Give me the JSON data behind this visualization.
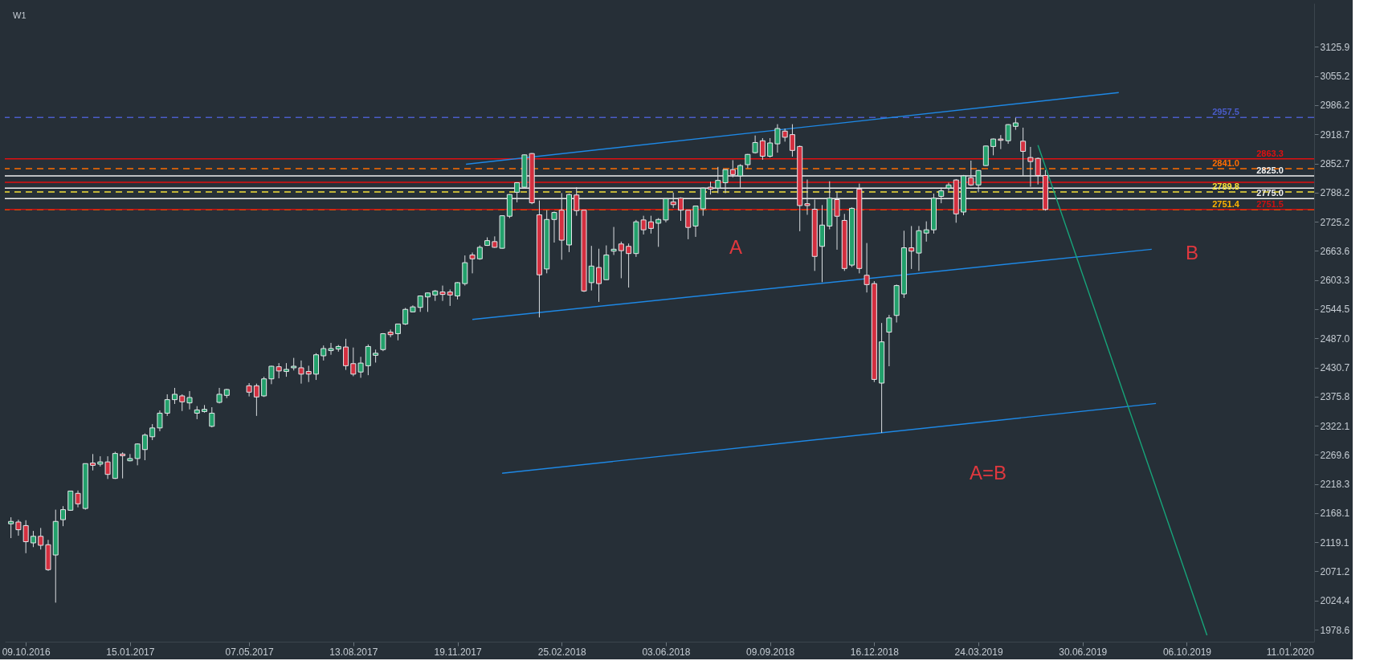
{
  "chart_data": {
    "type": "candlestick",
    "log": true,
    "annotations": [
      "W1",
      "A",
      "B",
      "A=B"
    ],
    "x": [
      "2016-09-25",
      "2016-10-02",
      "2016-10-09",
      "2016-10-16",
      "2016-10-23",
      "2016-10-30",
      "2016-11-06",
      "2016-11-13",
      "2016-11-20",
      "2016-11-27",
      "2016-12-04",
      "2016-12-11",
      "2016-12-18",
      "2016-12-25",
      "2017-01-01",
      "2017-01-08",
      "2017-01-15",
      "2017-01-22",
      "2017-01-29",
      "2017-02-05",
      "2017-02-12",
      "2017-02-19",
      "2017-02-26",
      "2017-03-05",
      "2017-03-12",
      "2017-03-19",
      "2017-03-26",
      "2017-04-02",
      "2017-04-09",
      "2017-04-16",
      "2017-05-07",
      "2017-05-14",
      "2017-05-21",
      "2017-05-28",
      "2017-06-04",
      "2017-06-11",
      "2017-06-18",
      "2017-06-25",
      "2017-07-02",
      "2017-07-09",
      "2017-07-16",
      "2017-07-23",
      "2017-07-30",
      "2017-08-06",
      "2017-08-13",
      "2017-08-20",
      "2017-08-27",
      "2017-09-03",
      "2017-09-10",
      "2017-09-17",
      "2017-09-24",
      "2017-10-01",
      "2017-10-08",
      "2017-10-15",
      "2017-10-22",
      "2017-10-29",
      "2017-11-05",
      "2017-11-12",
      "2017-11-19",
      "2017-11-26",
      "2017-12-03",
      "2017-12-10",
      "2017-12-17",
      "2017-12-24",
      "2017-12-31",
      "2018-01-07",
      "2018-01-14",
      "2018-01-21",
      "2018-01-28",
      "2018-02-04",
      "2018-02-11",
      "2018-02-18",
      "2018-02-25",
      "2018-03-04",
      "2018-03-11",
      "2018-03-18",
      "2018-03-25",
      "2018-04-01",
      "2018-04-08",
      "2018-04-15",
      "2018-04-22",
      "2018-04-29",
      "2018-05-06",
      "2018-05-13",
      "2018-05-20",
      "2018-05-27",
      "2018-06-03",
      "2018-06-10",
      "2018-06-17",
      "2018-06-24",
      "2018-07-01",
      "2018-07-08",
      "2018-07-15",
      "2018-07-22",
      "2018-07-29",
      "2018-08-05",
      "2018-08-12",
      "2018-08-19",
      "2018-08-26",
      "2018-09-02",
      "2018-09-09",
      "2018-09-16",
      "2018-09-23",
      "2018-09-30",
      "2018-10-07",
      "2018-10-14",
      "2018-10-21",
      "2018-10-28",
      "2018-11-04",
      "2018-11-11",
      "2018-11-18",
      "2018-11-25",
      "2018-12-02",
      "2018-12-09",
      "2018-12-16",
      "2018-12-23",
      "2018-12-30",
      "2019-01-06",
      "2019-01-13",
      "2019-01-20",
      "2019-01-27",
      "2019-02-03",
      "2019-02-10",
      "2019-02-17",
      "2019-02-24",
      "2019-03-03",
      "2019-03-10",
      "2019-03-17",
      "2019-03-24",
      "2019-03-31",
      "2019-04-07",
      "2019-04-14",
      "2019-04-21",
      "2019-04-28",
      "2019-05-05",
      "2019-05-12",
      "2019-05-19",
      "2019-05-26"
    ],
    "ohlc": [
      [
        2150,
        2161,
        2126,
        2154
      ],
      [
        2153,
        2157,
        2130,
        2140
      ],
      [
        2147,
        2156,
        2101,
        2120
      ],
      [
        2118,
        2138,
        2111,
        2129
      ],
      [
        2129,
        2143,
        2107,
        2114
      ],
      [
        2115,
        2123,
        2072,
        2074
      ],
      [
        2098,
        2174,
        2021,
        2154
      ],
      [
        2157,
        2180,
        2146,
        2174
      ],
      [
        2173,
        2206,
        2172,
        2206
      ],
      [
        2202,
        2207,
        2178,
        2184
      ],
      [
        2176,
        2254,
        2174,
        2254
      ],
      [
        2255,
        2271,
        2242,
        2251
      ],
      [
        2253,
        2267,
        2249,
        2257
      ],
      [
        2257,
        2267,
        2227,
        2235
      ],
      [
        2228,
        2275,
        2227,
        2272
      ],
      [
        2271,
        2274,
        2228,
        2268
      ],
      [
        2259,
        2271,
        2258,
        2263
      ],
      [
        2263,
        2290,
        2251,
        2289
      ],
      [
        2279,
        2308,
        2260,
        2305
      ],
      [
        2302,
        2325,
        2296,
        2318
      ],
      [
        2318,
        2350,
        2312,
        2345
      ],
      [
        2345,
        2380,
        2340,
        2370
      ],
      [
        2370,
        2392,
        2362,
        2380
      ],
      [
        2377,
        2380,
        2349,
        2366
      ],
      [
        2364,
        2386,
        2352,
        2374
      ],
      [
        2345,
        2358,
        2334,
        2351
      ],
      [
        2348,
        2360,
        2346,
        2352
      ],
      [
        2321,
        2356,
        2319,
        2345
      ],
      [
        2365,
        2392,
        2363,
        2380
      ],
      [
        2378,
        2390,
        2373,
        2389
      ],
      [
        2396,
        2401,
        2376,
        2384
      ],
      [
        2396,
        2400,
        2340,
        2375
      ],
      [
        2377,
        2413,
        2375,
        2409
      ],
      [
        2409,
        2434,
        2399,
        2433
      ],
      [
        2432,
        2439,
        2410,
        2424
      ],
      [
        2423,
        2439,
        2413,
        2427
      ],
      [
        2430,
        2449,
        2425,
        2433
      ],
      [
        2430,
        2444,
        2400,
        2418
      ],
      [
        2423,
        2434,
        2403,
        2418
      ],
      [
        2418,
        2458,
        2407,
        2455
      ],
      [
        2453,
        2473,
        2444,
        2467
      ],
      [
        2463,
        2478,
        2455,
        2467
      ],
      [
        2466,
        2474,
        2461,
        2471
      ],
      [
        2470,
        2486,
        2426,
        2434
      ],
      [
        2438,
        2469,
        2414,
        2418
      ],
      [
        2422,
        2451,
        2411,
        2439
      ],
      [
        2434,
        2475,
        2416,
        2471
      ],
      [
        2454,
        2465,
        2440,
        2458
      ],
      [
        2465,
        2497,
        2462,
        2496
      ],
      [
        2499,
        2504,
        2489,
        2494
      ],
      [
        2496,
        2515,
        2483,
        2515
      ],
      [
        2515,
        2547,
        2513,
        2544
      ],
      [
        2539,
        2552,
        2538,
        2549
      ],
      [
        2548,
        2572,
        2539,
        2571
      ],
      [
        2569,
        2578,
        2539,
        2577
      ],
      [
        2573,
        2583,
        2561,
        2581
      ],
      [
        2579,
        2592,
        2561,
        2574
      ],
      [
        2579,
        2584,
        2551,
        2573
      ],
      [
        2571,
        2599,
        2564,
        2598
      ],
      [
        2596,
        2654,
        2592,
        2639
      ],
      [
        2655,
        2660,
        2617,
        2647
      ],
      [
        2647,
        2675,
        2645,
        2671
      ],
      [
        2675,
        2692,
        2674,
        2685
      ],
      [
        2683,
        2694,
        2670,
        2671
      ],
      [
        2669,
        2739,
        2668,
        2738
      ],
      [
        2737,
        2785,
        2733,
        2784
      ],
      [
        2789,
        2811,
        2767,
        2810
      ],
      [
        2800,
        2873,
        2797,
        2872
      ],
      [
        2875,
        2876,
        2763,
        2766
      ],
      [
        2740,
        2771,
        2528,
        2614
      ],
      [
        2626,
        2750,
        2617,
        2730
      ],
      [
        2730,
        2747,
        2681,
        2745
      ],
      [
        2750,
        2787,
        2645,
        2686
      ],
      [
        2676,
        2786,
        2661,
        2784
      ],
      [
        2783,
        2800,
        2738,
        2749
      ],
      [
        2750,
        2751,
        2579,
        2581
      ],
      [
        2598,
        2674,
        2582,
        2632
      ],
      [
        2629,
        2668,
        2559,
        2596
      ],
      [
        2604,
        2675,
        2603,
        2655
      ],
      [
        2663,
        2714,
        2655,
        2667
      ],
      [
        2678,
        2683,
        2607,
        2664
      ],
      [
        2673,
        2679,
        2588,
        2658
      ],
      [
        2658,
        2729,
        2651,
        2725
      ],
      [
        2729,
        2738,
        2698,
        2708
      ],
      [
        2725,
        2738,
        2700,
        2711
      ],
      [
        2722,
        2733,
        2672,
        2730
      ],
      [
        2729,
        2775,
        2724,
        2775
      ],
      [
        2768,
        2788,
        2755,
        2762
      ],
      [
        2776,
        2778,
        2727,
        2750
      ],
      [
        2750,
        2750,
        2688,
        2713
      ],
      [
        2716,
        2759,
        2693,
        2759
      ],
      [
        2753,
        2799,
        2738,
        2798
      ],
      [
        2800,
        2812,
        2784,
        2796
      ],
      [
        2798,
        2845,
        2787,
        2815
      ],
      [
        2810,
        2839,
        2787,
        2839
      ],
      [
        2839,
        2860,
        2822,
        2828
      ],
      [
        2825,
        2851,
        2799,
        2848
      ],
      [
        2850,
        2874,
        2842,
        2873
      ],
      [
        2877,
        2916,
        2875,
        2900
      ],
      [
        2904,
        2910,
        2861,
        2869
      ],
      [
        2869,
        2910,
        2866,
        2899
      ],
      [
        2897,
        2942,
        2877,
        2932
      ],
      [
        2926,
        2932,
        2902,
        2912
      ],
      [
        2918,
        2942,
        2868,
        2882
      ],
      [
        2891,
        2893,
        2705,
        2760
      ],
      [
        2764,
        2817,
        2740,
        2760
      ],
      [
        2752,
        2773,
        2622,
        2652
      ],
      [
        2673,
        2761,
        2599,
        2718
      ],
      [
        2716,
        2813,
        2709,
        2776
      ],
      [
        2773,
        2789,
        2666,
        2737
      ],
      [
        2728,
        2742,
        2622,
        2627
      ],
      [
        2634,
        2756,
        2630,
        2754
      ],
      [
        2796,
        2808,
        2617,
        2627
      ],
      [
        2613,
        2680,
        2578,
        2594
      ],
      [
        2596,
        2601,
        2403,
        2408
      ],
      [
        2401,
        2517,
        2309,
        2480
      ],
      [
        2499,
        2533,
        2433,
        2527
      ],
      [
        2532,
        2594,
        2518,
        2592
      ],
      [
        2575,
        2706,
        2567,
        2670
      ],
      [
        2670,
        2716,
        2626,
        2663
      ],
      [
        2659,
        2716,
        2622,
        2706
      ],
      [
        2701,
        2726,
        2683,
        2708
      ],
      [
        2708,
        2786,
        2700,
        2776
      ],
      [
        2780,
        2799,
        2765,
        2792
      ],
      [
        2798,
        2810,
        2792,
        2805
      ],
      [
        2816,
        2818,
        2723,
        2742
      ],
      [
        2746,
        2827,
        2739,
        2825
      ],
      [
        2821,
        2859,
        2803,
        2805
      ],
      [
        2805,
        2838,
        2789,
        2837
      ],
      [
        2848,
        2893,
        2847,
        2892
      ],
      [
        2891,
        2909,
        2871,
        2908
      ],
      [
        2908,
        2917,
        2885,
        2905
      ],
      [
        2904,
        2942,
        2897,
        2941
      ],
      [
        2937,
        2957,
        2929,
        2945
      ],
      [
        2903,
        2934,
        2825,
        2880
      ],
      [
        2866,
        2890,
        2801,
        2857
      ],
      [
        2864,
        2866,
        2806,
        2826
      ],
      [
        2826,
        2838,
        2749,
        2751.5
      ]
    ],
    "colors": [
      "#22a06b",
      "#d32f3f",
      "#d32f3f",
      "#22a06b",
      "#d32f3f",
      "#d32f3f",
      "#22a06b",
      "#22a06b",
      "#22a06b",
      "#d32f3f",
      "#22a06b",
      "#d32f3f",
      "#22a06b",
      "#d32f3f",
      "#22a06b",
      "#d32f3f",
      "#22a06b",
      "#22a06b",
      "#22a06b",
      "#22a06b",
      "#22a06b",
      "#22a06b",
      "#22a06b",
      "#d32f3f",
      "#22a06b",
      "#22a06b",
      "#22a06b",
      "#22a06b",
      "#22a06b",
      "#22a06b",
      "#d32f3f",
      "#d32f3f",
      "#22a06b",
      "#22a06b",
      "#d32f3f",
      "#22a06b",
      "#22a06b",
      "#d32f3f",
      "#d32f3f",
      "#22a06b",
      "#22a06b",
      "#22a06b",
      "#22a06b",
      "#d32f3f",
      "#d32f3f",
      "#22a06b",
      "#22a06b",
      "#22a06b",
      "#22a06b",
      "#d32f3f",
      "#22a06b",
      "#22a06b",
      "#22a06b",
      "#22a06b",
      "#22a06b",
      "#22a06b",
      "#d32f3f",
      "#d32f3f",
      "#22a06b",
      "#22a06b",
      "#d32f3f",
      "#22a06b",
      "#22a06b",
      "#d32f3f",
      "#22a06b",
      "#22a06b",
      "#22a06b",
      "#22a06b",
      "#d32f3f",
      "#d32f3f",
      "#22a06b",
      "#22a06b",
      "#d32f3f",
      "#22a06b",
      "#d32f3f",
      "#d32f3f",
      "#22a06b",
      "#d32f3f",
      "#22a06b",
      "#22a06b",
      "#d32f3f",
      "#d32f3f",
      "#22a06b",
      "#d32f3f",
      "#d32f3f",
      "#22a06b",
      "#22a06b",
      "#d32f3f",
      "#d32f3f",
      "#d32f3f",
      "#22a06b",
      "#22a06b",
      "#d32f3f",
      "#22a06b",
      "#22a06b",
      "#d32f3f",
      "#22a06b",
      "#22a06b",
      "#22a06b",
      "#d32f3f",
      "#22a06b",
      "#22a06b",
      "#d32f3f",
      "#d32f3f",
      "#d32f3f",
      "#d32f3f",
      "#d32f3f",
      "#22a06b",
      "#22a06b",
      "#d32f3f",
      "#d32f3f",
      "#22a06b",
      "#d32f3f",
      "#d32f3f",
      "#d32f3f",
      "#22a06b",
      "#22a06b",
      "#22a06b",
      "#22a06b",
      "#d32f3f",
      "#22a06b",
      "#22a06b",
      "#22a06b",
      "#22a06b",
      "#22a06b",
      "#d32f3f",
      "#22a06b",
      "#d32f3f",
      "#22a06b",
      "#22a06b",
      "#22a06b",
      "#d32f3f",
      "#22a06b",
      "#22a06b",
      "#d32f3f",
      "#d32f3f",
      "#d32f3f",
      "#d32f3f"
    ],
    "series": [
      {
        "type": "line",
        "color": "#1e88e5",
        "x": [
          "2017-11-27",
          "2019-08-03"
        ],
        "values": [
          2851,
          3016
        ]
      },
      {
        "type": "line",
        "color": "#1e88e5",
        "x": [
          "2017-12-03",
          "2019-09-03"
        ],
        "values": [
          2524,
          2667
        ]
      },
      {
        "type": "line",
        "color": "#1e88e5",
        "x": [
          "2017-12-31",
          "2019-09-07"
        ],
        "values": [
          2237,
          2363
        ]
      },
      {
        "type": "line",
        "color": "#17a57a",
        "x": [
          "2019-05-19",
          "2019-10-25"
        ],
        "values": [
          2894,
          1970
        ]
      }
    ],
    "ref_lines": [
      {
        "axis": "y",
        "value": 2957.5,
        "label": "2957.5",
        "color": "#4a5cc8",
        "line_style": "dashed"
      },
      {
        "axis": "y",
        "value": 2863.3,
        "label": "2863.3",
        "color": "#e01010",
        "line_style": "solid"
      },
      {
        "axis": "y",
        "value": 2841.0,
        "label": "2841.0",
        "color": "#ff6d00",
        "line_style": "dashed"
      },
      {
        "axis": "y",
        "value": 2825.0,
        "label": "2825.0",
        "color": "#f0f0f0",
        "line_style": "solid"
      },
      {
        "axis": "y",
        "value": 2789.8,
        "label": "2789.8",
        "color": "#f5e13a",
        "line_style": "dashed"
      },
      {
        "axis": "y",
        "value": 2775.0,
        "label": "2775.0",
        "color": "#f0f0f0",
        "line_style": "solid"
      },
      {
        "axis": "y",
        "value": 2751.4,
        "label": "2751.4",
        "color": "#ffb300",
        "line_style": "dashed"
      },
      {
        "axis": "y",
        "value": 2751.5,
        "label": "2751.5",
        "color": "#d01010",
        "line_style": "solid"
      },
      {
        "axis": "y",
        "value": 2811,
        "label": null,
        "color": "#e01010",
        "line_style": "solid"
      },
      {
        "axis": "y",
        "value": 2798,
        "label": null,
        "color": "#f0f0f0",
        "line_style": "solid"
      }
    ],
    "xlim": [
      "2016-09-23",
      "2020-01-30"
    ],
    "xticks": [
      {
        "value": "2016-10-09",
        "label": "09.10.2016"
      },
      {
        "value": "2017-01-15",
        "label": "15.01.2017"
      },
      {
        "value": "2017-05-07",
        "label": "07.05.2017"
      },
      {
        "value": "2017-08-13",
        "label": "13.08.2017"
      },
      {
        "value": "2017-11-19",
        "label": "19.11.2017"
      },
      {
        "value": "2018-02-25",
        "label": "25.02.2018"
      },
      {
        "value": "2018-06-03",
        "label": "03.06.2018"
      },
      {
        "value": "2018-09-09",
        "label": "09.09.2018"
      },
      {
        "value": "2018-12-16",
        "label": "16.12.2018"
      },
      {
        "value": "2019-03-24",
        "label": "24.03.2019"
      },
      {
        "value": "2019-06-30",
        "label": "30.06.2019"
      },
      {
        "value": "2019-10-06",
        "label": "06.10.2019"
      },
      {
        "value": "2020-01-11",
        "label": "11.01.2020"
      }
    ],
    "ylim": [
      1960,
      3235
    ],
    "yticks": [
      3125.9,
      3055.2,
      2986.2,
      2918.7,
      2852.7,
      2788.2,
      2725.2,
      2663.6,
      2603.3,
      2544.5,
      {
        "value": 2487,
        "label": "2487.0"
      },
      2430.7,
      2375.8,
      2322.1,
      2269.6,
      2218.3,
      2168.1,
      2119.1,
      2071.2,
      2024.4,
      1978.6
    ]
  }
}
